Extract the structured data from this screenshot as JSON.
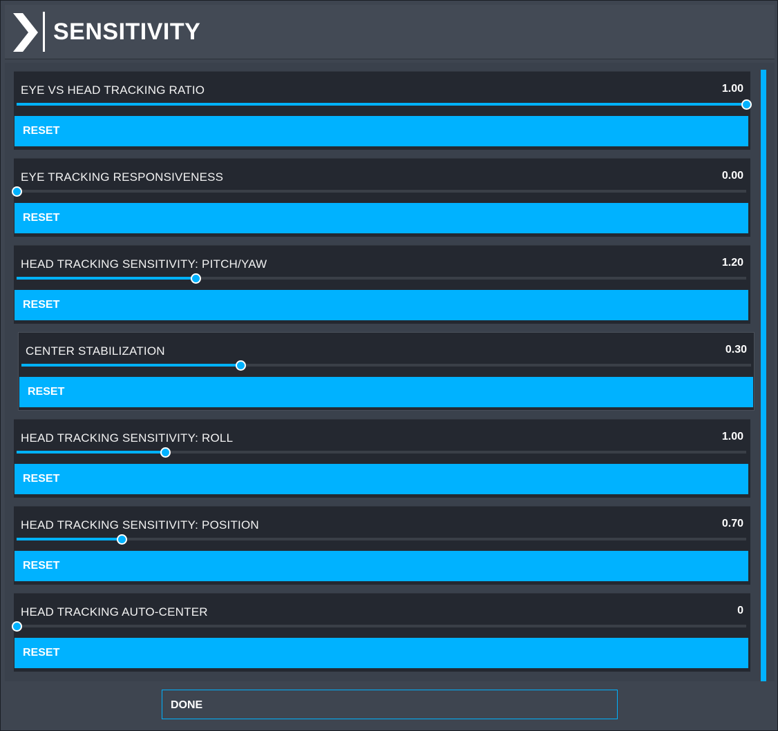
{
  "header": {
    "title": "SENSITIVITY",
    "icon": "chevron-right-icon"
  },
  "settings": [
    {
      "label": "EYE VS HEAD TRACKING RATIO",
      "value_text": "1.00",
      "fill_fraction": 1.0,
      "reset_label": "RESET"
    },
    {
      "label": "EYE TRACKING RESPONSIVENESS",
      "value_text": "0.00",
      "fill_fraction": 0.0,
      "reset_label": "RESET"
    },
    {
      "label": "HEAD TRACKING SENSITIVITY: PITCH/YAW",
      "value_text": "1.20",
      "fill_fraction": 0.245,
      "reset_label": "RESET"
    },
    {
      "label": "CENTER STABILIZATION",
      "value_text": "0.30",
      "fill_fraction": 0.3,
      "reset_label": "RESET"
    },
    {
      "label": "HEAD TRACKING SENSITIVITY: ROLL",
      "value_text": "1.00",
      "fill_fraction": 0.204,
      "reset_label": "RESET"
    },
    {
      "label": "HEAD TRACKING SENSITIVITY: POSITION",
      "value_text": "0.70",
      "fill_fraction": 0.144,
      "reset_label": "RESET"
    },
    {
      "label": "HEAD TRACKING AUTO-CENTER",
      "value_text": "0",
      "fill_fraction": 0.0,
      "reset_label": "RESET"
    }
  ],
  "footer": {
    "done_label": "DONE"
  },
  "colors": {
    "accent": "#00b2ff",
    "card_bg": "#242830",
    "panel_bg": "#3e4550"
  }
}
